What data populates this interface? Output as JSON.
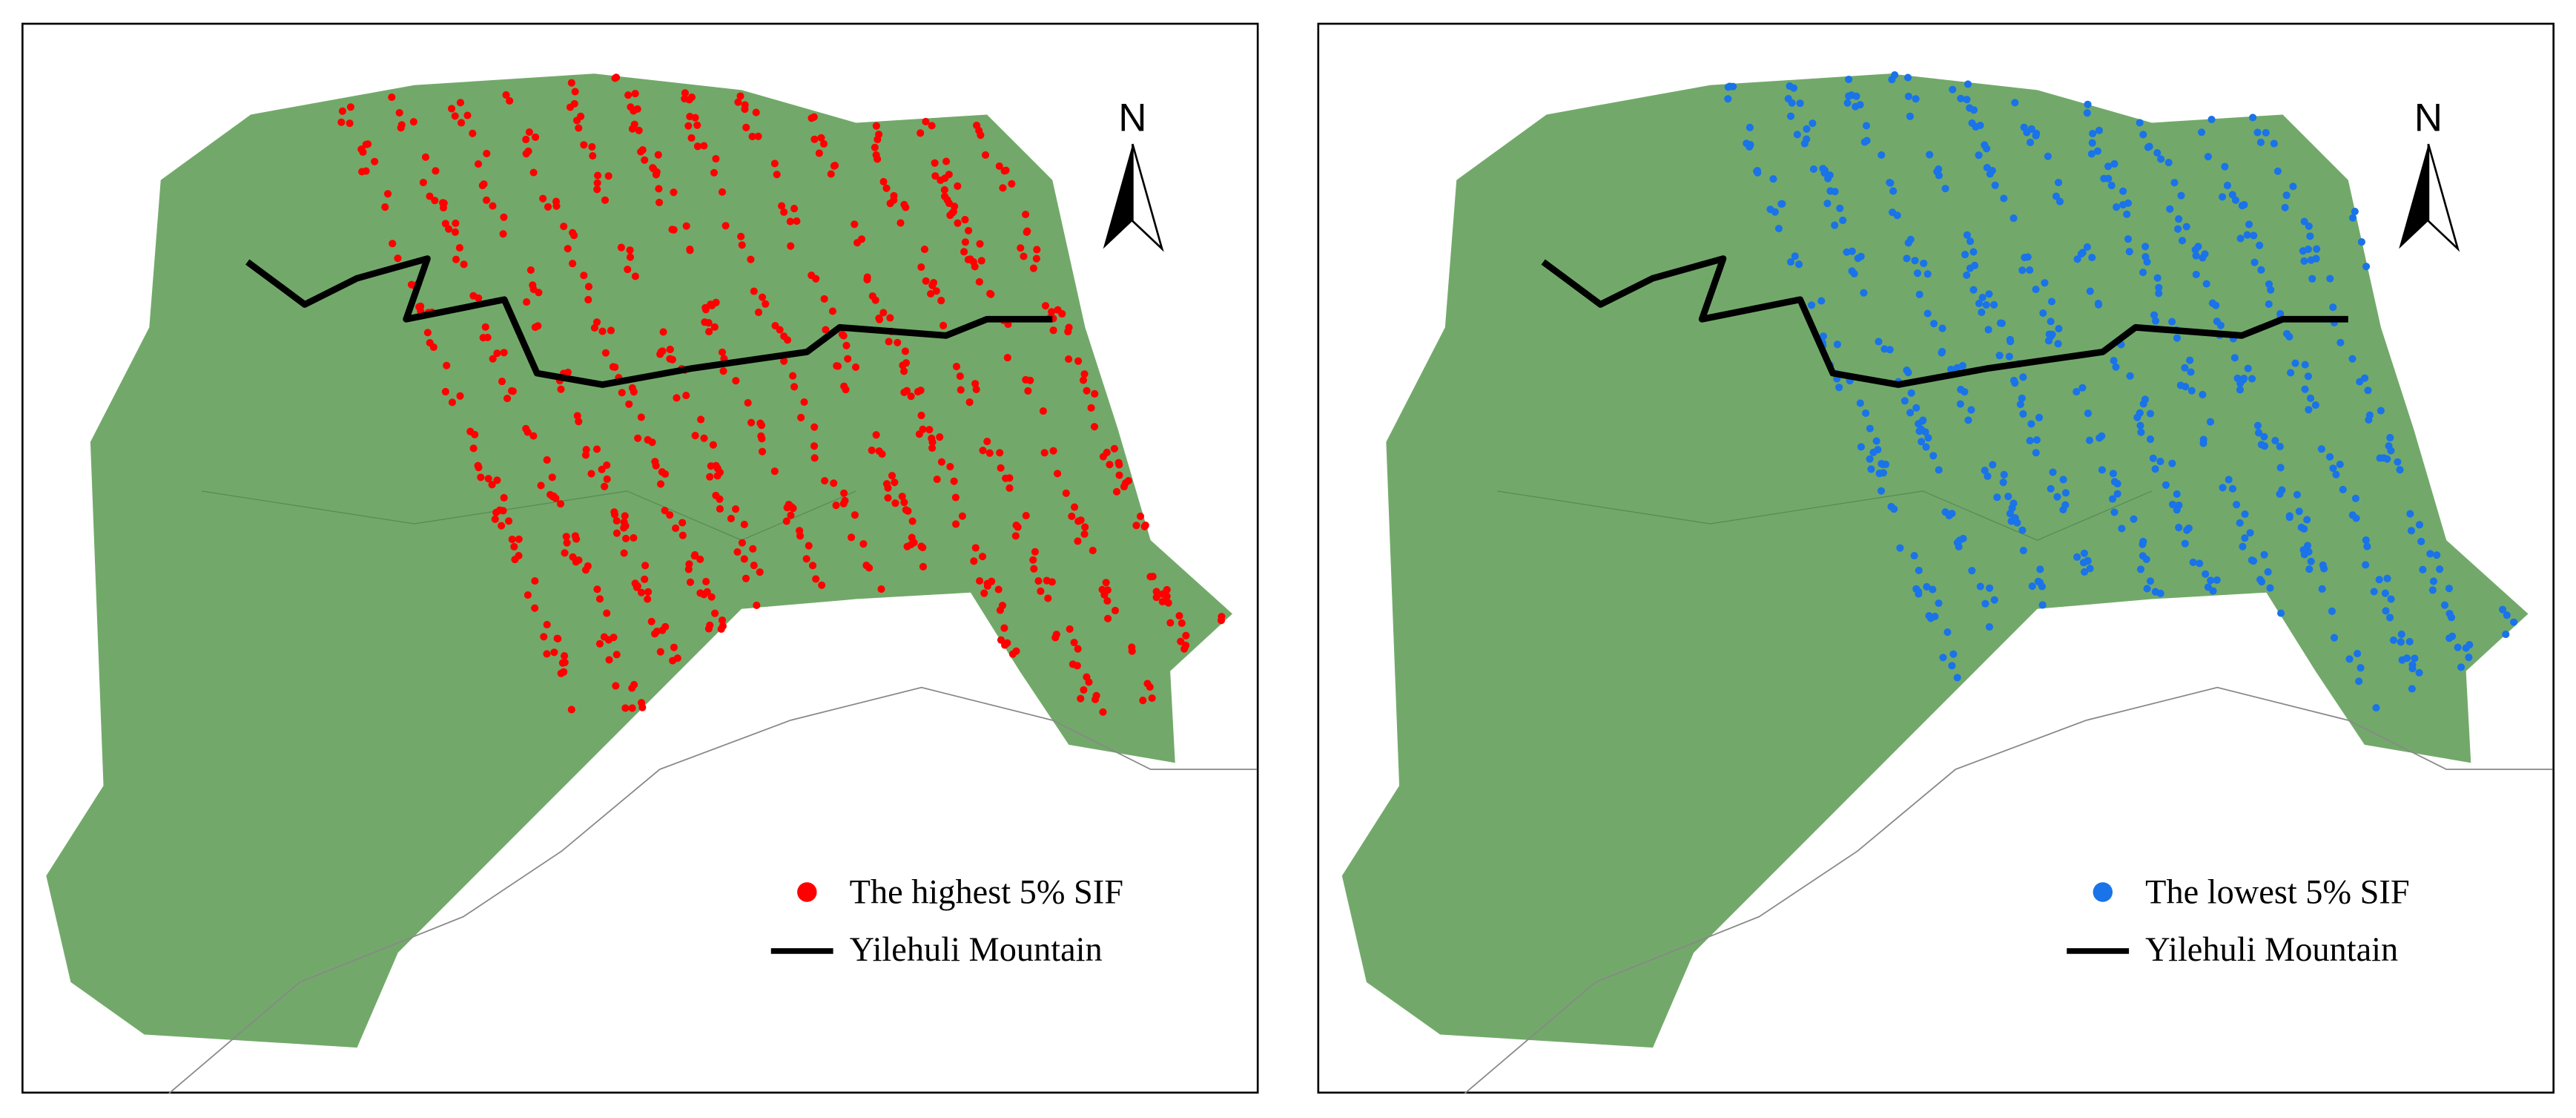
{
  "panels": [
    {
      "north": "N",
      "point_color": "#ff0000",
      "legend": [
        "The highest 5% SIF",
        "Yilehuli Mountain"
      ]
    },
    {
      "north": "N",
      "point_color": "#1a73e8",
      "legend": [
        "The lowest 5% SIF",
        "Yilehuli Mountain"
      ]
    }
  ]
}
